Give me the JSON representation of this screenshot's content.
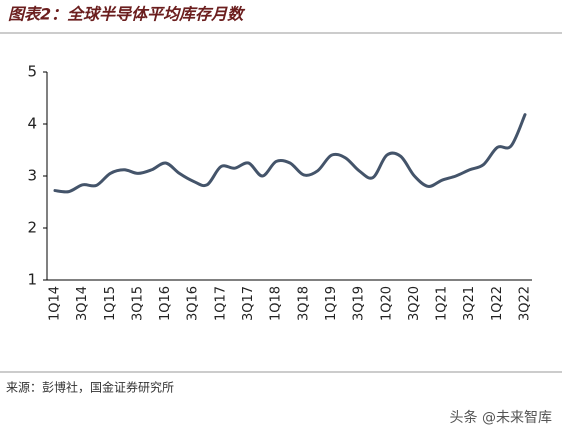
{
  "chart_data": {
    "type": "line",
    "title": "图表2：全球半导体平均库存月数",
    "source": "来源：彭博社，国金证券研究所",
    "watermark": "头条 @未来智库",
    "categories": [
      "1Q14",
      null,
      "3Q14",
      null,
      "1Q15",
      null,
      "3Q15",
      null,
      "1Q16",
      null,
      "3Q16",
      null,
      "1Q17",
      null,
      "3Q17",
      null,
      "1Q18",
      null,
      "3Q18",
      null,
      "1Q19",
      null,
      "3Q19",
      null,
      "1Q20",
      null,
      "3Q20",
      null,
      "1Q21",
      null,
      "3Q21",
      null,
      "1Q22",
      null,
      "3Q22"
    ],
    "series": [
      {
        "color": "#44546a",
        "values": [
          2.72,
          2.7,
          2.83,
          2.82,
          3.05,
          3.12,
          3.05,
          3.12,
          3.25,
          3.05,
          2.9,
          2.83,
          3.18,
          3.15,
          3.25,
          3.0,
          3.28,
          3.25,
          3.02,
          3.1,
          3.4,
          3.35,
          3.1,
          2.97,
          3.4,
          3.38,
          3.0,
          2.8,
          2.92,
          3.0,
          3.12,
          3.22,
          3.55,
          3.58,
          4.18
        ]
      }
    ],
    "ylim": [
      1,
      5
    ],
    "yticks": [
      1,
      2,
      3,
      4,
      5
    ],
    "grid": false
  }
}
